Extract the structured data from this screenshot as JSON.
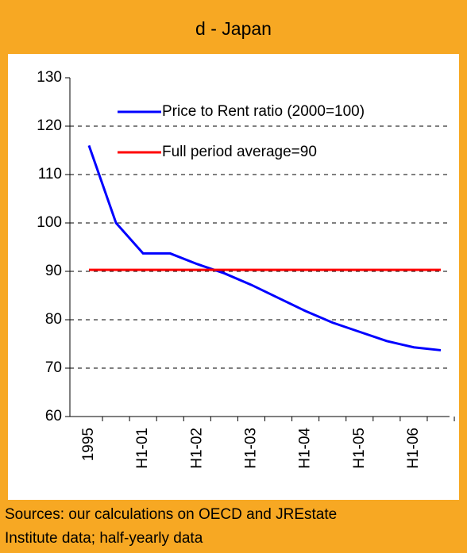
{
  "chart_data": {
    "type": "line",
    "title": "d - Japan",
    "categories": [
      "1995",
      null,
      "H1-01",
      null,
      "H1-02",
      null,
      "H1-03",
      null,
      "H1-04",
      null,
      "H1-05",
      null,
      "H1-06",
      null
    ],
    "series": [
      {
        "name": "Price to Rent ratio (2000=100)",
        "color": "#0000ff",
        "values": [
          116,
          100,
          93.7,
          93.7,
          91.5,
          89.6,
          87.2,
          84.5,
          81.8,
          79.4,
          77.5,
          75.6,
          74.3,
          73.7
        ]
      },
      {
        "name": "Full period average=90",
        "color": "#ff0000",
        "values": [
          90.3,
          90.3,
          90.3,
          90.3,
          90.3,
          90.3,
          90.3,
          90.3,
          90.3,
          90.3,
          90.3,
          90.3,
          90.3,
          90.3
        ]
      }
    ],
    "ylim": [
      60,
      130
    ],
    "yticks": [
      60,
      70,
      80,
      90,
      100,
      110,
      120,
      130
    ],
    "grid": true,
    "legend": "top",
    "sources": [
      "Sources: our calculations on OECD and JREstate",
      "Institute data; half-yearly data"
    ]
  }
}
